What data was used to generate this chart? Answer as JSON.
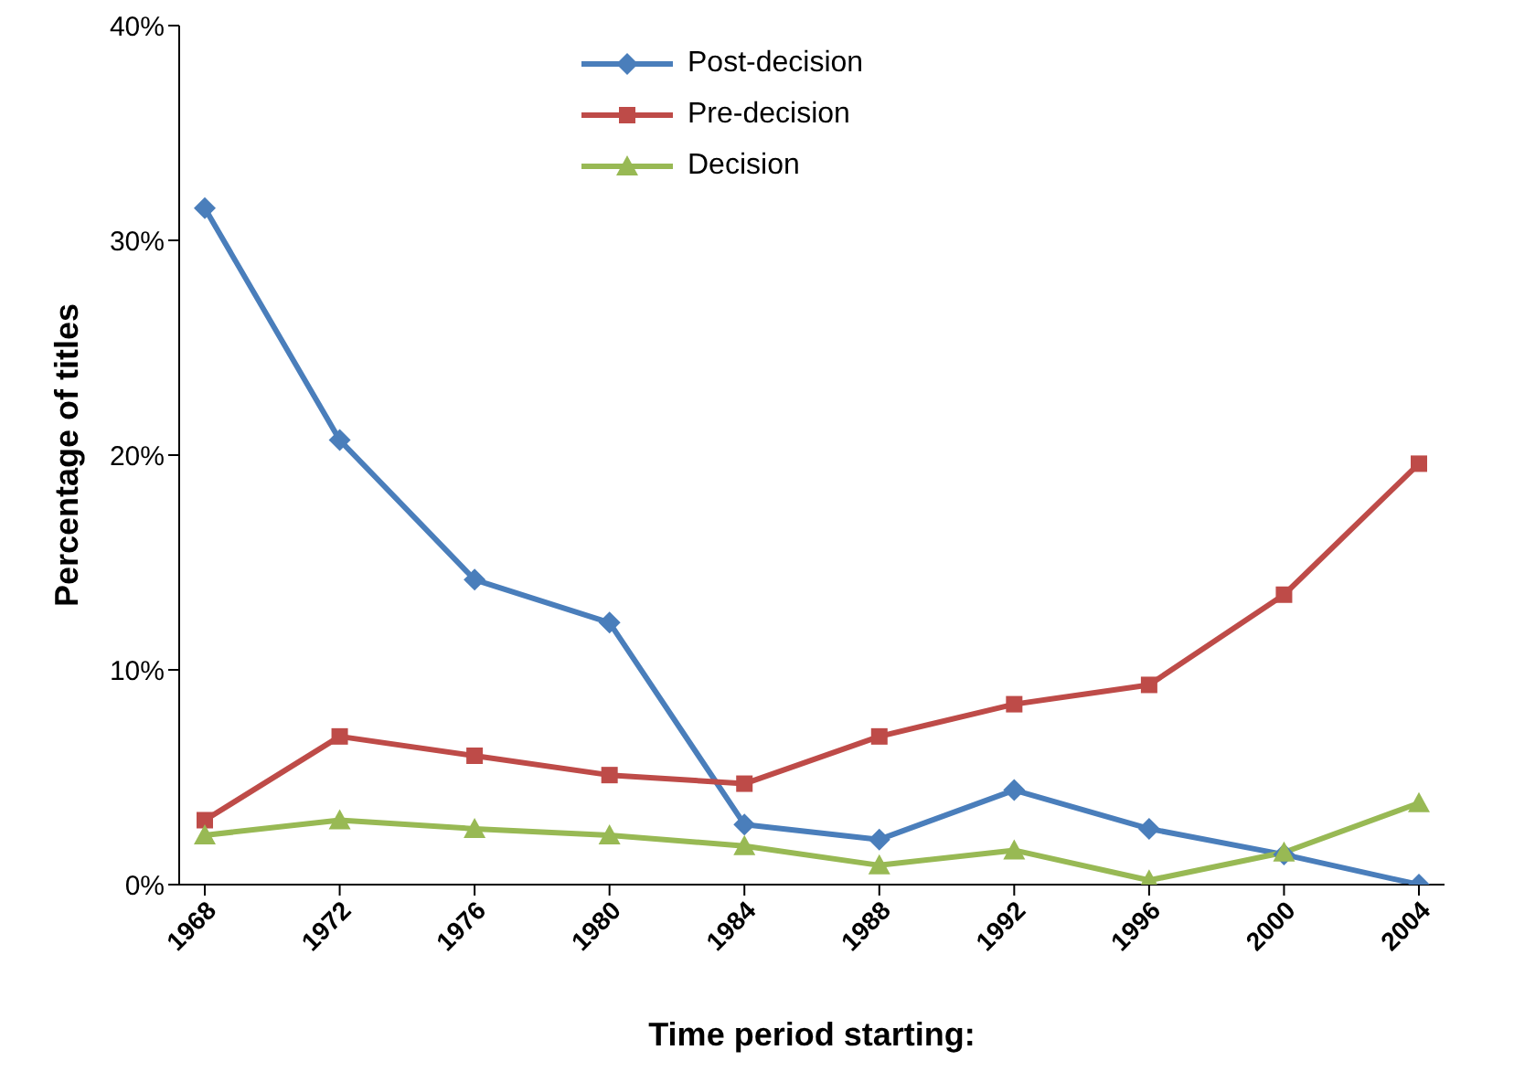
{
  "chart_data": {
    "type": "line",
    "xlabel": "Time period starting:",
    "ylabel": "Percentage of titles",
    "categories": [
      "1968",
      "1972",
      "1976",
      "1980",
      "1984",
      "1988",
      "1992",
      "1996",
      "2000",
      "2004"
    ],
    "series": [
      {
        "name": "Post-decision",
        "color": "#4a7ebb",
        "marker": "diamond",
        "values": [
          31.5,
          20.7,
          14.2,
          12.2,
          2.8,
          2.1,
          4.4,
          2.6,
          1.4,
          0
        ]
      },
      {
        "name": "Pre-decision",
        "color": "#be4b48",
        "marker": "square",
        "values": [
          3.0,
          6.9,
          6.0,
          5.1,
          4.7,
          6.9,
          8.4,
          9.3,
          13.5,
          19.6
        ]
      },
      {
        "name": "Decision",
        "color": "#98b954",
        "marker": "triangle",
        "values": [
          2.3,
          3.0,
          2.6,
          2.3,
          1.8,
          0.9,
          1.6,
          0.2,
          1.5,
          3.8
        ]
      }
    ],
    "ylim": [
      0,
      40
    ],
    "yticks": [
      {
        "value": 0,
        "label": "0%"
      },
      {
        "value": 10,
        "label": "10%"
      },
      {
        "value": 20,
        "label": "20%"
      },
      {
        "value": 30,
        "label": "30%"
      },
      {
        "value": 40,
        "label": "40%"
      }
    ],
    "grid": false,
    "legend": "top",
    "line_style": "solid"
  }
}
